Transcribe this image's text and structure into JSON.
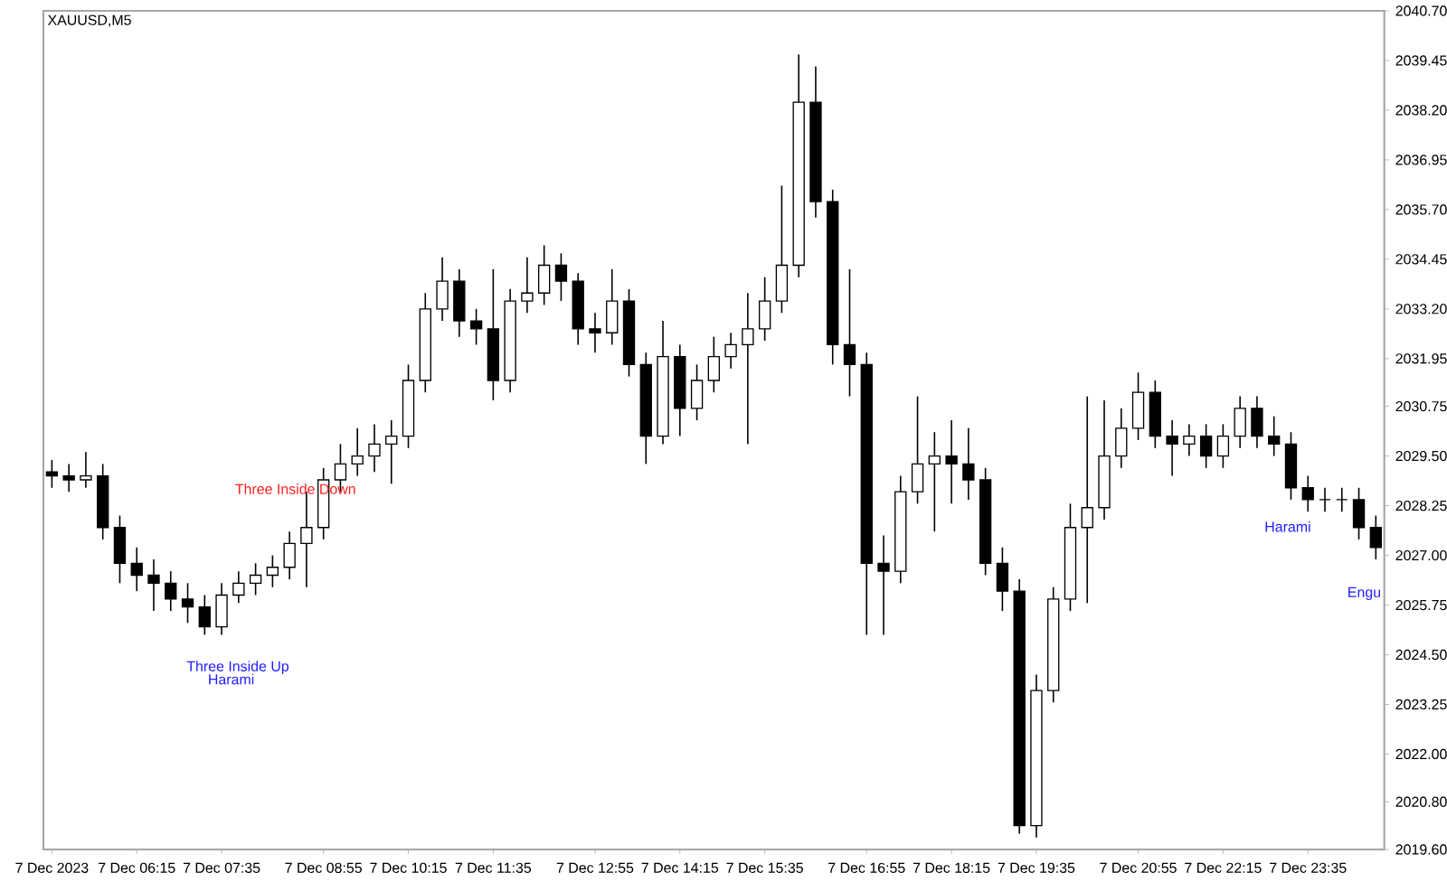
{
  "chart_data": {
    "type": "candlestick",
    "title": "XAUUSD,M5",
    "color": "#000000",
    "ylim": [
      2019.6,
      2040.7
    ],
    "categories": [
      "7 Dec 2023",
      null,
      null,
      null,
      null,
      "7 Dec 06:15",
      null,
      null,
      null,
      null,
      "7 Dec 07:35",
      null,
      null,
      null,
      null,
      null,
      "7 Dec 08:55",
      null,
      null,
      null,
      null,
      "7 Dec 10:15",
      null,
      null,
      null,
      null,
      "7 Dec 11:35",
      null,
      null,
      null,
      null,
      null,
      "7 Dec 12:55",
      null,
      null,
      null,
      null,
      "7 Dec 14:15",
      null,
      null,
      null,
      null,
      "7 Dec 15:35",
      null,
      null,
      null,
      null,
      null,
      "7 Dec 16:55",
      null,
      null,
      null,
      null,
      "7 Dec 18:15",
      null,
      null,
      null,
      null,
      "7 Dec 19:35",
      null,
      null,
      null,
      null,
      null,
      "7 Dec 20:55",
      null,
      null,
      null,
      null,
      "7 Dec 22:15",
      null,
      null,
      null,
      null,
      "7 Dec 23:35",
      null,
      null,
      null,
      null
    ],
    "yticks": [
      {
        "value": 2019.6,
        "label": "2019.60"
      },
      {
        "value": 2020.8,
        "label": "2020.80"
      },
      {
        "value": 2022.0,
        "label": "2022.00"
      },
      {
        "value": 2023.25,
        "label": "2023.25"
      },
      {
        "value": 2024.5,
        "label": "2024.50"
      },
      {
        "value": 2025.75,
        "label": "2025.75"
      },
      {
        "value": 2027.0,
        "label": "2027.00"
      },
      {
        "value": 2028.25,
        "label": "2028.25"
      },
      {
        "value": 2029.5,
        "label": "2029.50"
      },
      {
        "value": 2030.75,
        "label": "2030.75"
      },
      {
        "value": 2031.95,
        "label": "2031.95"
      },
      {
        "value": 2033.2,
        "label": "2033.20"
      },
      {
        "value": 2034.45,
        "label": "2034.45"
      },
      {
        "value": 2035.7,
        "label": "2035.70"
      },
      {
        "value": 2036.95,
        "label": "2036.95"
      },
      {
        "value": 2038.2,
        "label": "2038.20"
      },
      {
        "value": 2039.45,
        "label": "2039.45"
      },
      {
        "value": 2040.7,
        "label": "2040.70"
      }
    ],
    "ohlc": [
      [
        2029.1,
        2029.4,
        2028.7,
        2029.0
      ],
      [
        2029.0,
        2029.3,
        2028.6,
        2028.9
      ],
      [
        2028.9,
        2029.6,
        2028.7,
        2029.0
      ],
      [
        2029.0,
        2029.3,
        2027.4,
        2027.7
      ],
      [
        2027.7,
        2028.0,
        2026.3,
        2026.8
      ],
      [
        2026.8,
        2027.2,
        2026.1,
        2026.5
      ],
      [
        2026.5,
        2026.9,
        2025.6,
        2026.3
      ],
      [
        2026.3,
        2026.6,
        2025.6,
        2025.9
      ],
      [
        2025.9,
        2026.3,
        2025.3,
        2025.7
      ],
      [
        2025.7,
        2026.0,
        2025.0,
        2025.2
      ],
      [
        2025.2,
        2026.3,
        2025.0,
        2026.0
      ],
      [
        2026.0,
        2026.6,
        2025.8,
        2026.3
      ],
      [
        2026.3,
        2026.8,
        2026.0,
        2026.5
      ],
      [
        2026.5,
        2027.0,
        2026.2,
        2026.7
      ],
      [
        2026.7,
        2027.6,
        2026.4,
        2027.3
      ],
      [
        2027.3,
        2028.6,
        2026.2,
        2027.7
      ],
      [
        2027.7,
        2029.2,
        2027.4,
        2028.9
      ],
      [
        2028.9,
        2029.8,
        2028.6,
        2029.3
      ],
      [
        2029.3,
        2030.2,
        2029.0,
        2029.5
      ],
      [
        2029.5,
        2030.3,
        2029.1,
        2029.8
      ],
      [
        2029.8,
        2030.4,
        2028.8,
        2030.0
      ],
      [
        2030.0,
        2031.8,
        2029.7,
        2031.4
      ],
      [
        2031.4,
        2033.6,
        2031.1,
        2033.2
      ],
      [
        2033.2,
        2034.5,
        2032.9,
        2033.9
      ],
      [
        2033.9,
        2034.2,
        2032.5,
        2032.9
      ],
      [
        2032.9,
        2033.2,
        2032.3,
        2032.7
      ],
      [
        2032.7,
        2034.2,
        2030.9,
        2031.4
      ],
      [
        2031.4,
        2033.7,
        2031.1,
        2033.4
      ],
      [
        2033.4,
        2034.5,
        2033.1,
        2033.6
      ],
      [
        2033.6,
        2034.8,
        2033.3,
        2034.3
      ],
      [
        2034.3,
        2034.6,
        2033.4,
        2033.9
      ],
      [
        2033.9,
        2034.1,
        2032.3,
        2032.7
      ],
      [
        2032.7,
        2033.1,
        2032.1,
        2032.6
      ],
      [
        2032.6,
        2034.2,
        2032.3,
        2033.4
      ],
      [
        2033.4,
        2033.7,
        2031.5,
        2031.8
      ],
      [
        2031.8,
        2032.1,
        2029.3,
        2030.0
      ],
      [
        2030.0,
        2032.9,
        2029.8,
        2032.0
      ],
      [
        2032.0,
        2032.3,
        2030.0,
        2030.7
      ],
      [
        2030.7,
        2031.8,
        2030.4,
        2031.4
      ],
      [
        2031.4,
        2032.5,
        2031.1,
        2032.0
      ],
      [
        2032.0,
        2032.6,
        2031.7,
        2032.3
      ],
      [
        2032.3,
        2033.6,
        2029.8,
        2032.7
      ],
      [
        2032.7,
        2034.0,
        2032.4,
        2033.4
      ],
      [
        2033.4,
        2036.3,
        2033.1,
        2034.3
      ],
      [
        2034.3,
        2039.6,
        2034.0,
        2038.4
      ],
      [
        2038.4,
        2039.3,
        2035.5,
        2035.9
      ],
      [
        2035.9,
        2036.2,
        2031.8,
        2032.3
      ],
      [
        2032.3,
        2034.2,
        2031.0,
        2031.8
      ],
      [
        2031.8,
        2032.1,
        2025.0,
        2026.8
      ],
      [
        2026.8,
        2027.5,
        2025.0,
        2026.6
      ],
      [
        2026.6,
        2029.0,
        2026.3,
        2028.6
      ],
      [
        2028.6,
        2031.0,
        2028.3,
        2029.3
      ],
      [
        2029.3,
        2030.1,
        2027.6,
        2029.5
      ],
      [
        2029.5,
        2030.4,
        2028.3,
        2029.3
      ],
      [
        2029.3,
        2030.2,
        2028.4,
        2028.9
      ],
      [
        2028.9,
        2029.2,
        2026.5,
        2026.8
      ],
      [
        2026.8,
        2027.2,
        2025.6,
        2026.1
      ],
      [
        2026.1,
        2026.4,
        2020.0,
        2020.2
      ],
      [
        2020.2,
        2024.0,
        2019.9,
        2023.6
      ],
      [
        2023.6,
        2026.2,
        2023.3,
        2025.9
      ],
      [
        2025.9,
        2028.3,
        2025.6,
        2027.7
      ],
      [
        2027.7,
        2031.0,
        2025.8,
        2028.2
      ],
      [
        2028.2,
        2030.9,
        2027.9,
        2029.5
      ],
      [
        2029.5,
        2030.7,
        2029.2,
        2030.2
      ],
      [
        2030.2,
        2031.6,
        2029.9,
        2031.1
      ],
      [
        2031.1,
        2031.4,
        2029.7,
        2030.0
      ],
      [
        2030.0,
        2030.4,
        2029.0,
        2029.8
      ],
      [
        2029.8,
        2030.3,
        2029.5,
        2030.0
      ],
      [
        2030.0,
        2030.3,
        2029.2,
        2029.5
      ],
      [
        2029.5,
        2030.3,
        2029.2,
        2030.0
      ],
      [
        2030.0,
        2031.0,
        2029.7,
        2030.7
      ],
      [
        2030.7,
        2031.0,
        2029.7,
        2030.0
      ],
      [
        2030.0,
        2030.5,
        2029.5,
        2029.8
      ],
      [
        2029.8,
        2030.1,
        2028.4,
        2028.7
      ],
      [
        2028.7,
        2029.0,
        2028.1,
        2028.4
      ],
      [
        2028.4,
        2028.7,
        2028.1,
        2028.4
      ],
      [
        2028.4,
        2028.7,
        2028.1,
        2028.4
      ],
      [
        2028.4,
        2028.7,
        2027.4,
        2027.7
      ],
      [
        2027.7,
        2028.0,
        2026.9,
        2027.2
      ]
    ],
    "annotations": [
      "Three Inside Down",
      "Three Inside Up",
      "Harami",
      "Harami",
      "Engu"
    ]
  }
}
